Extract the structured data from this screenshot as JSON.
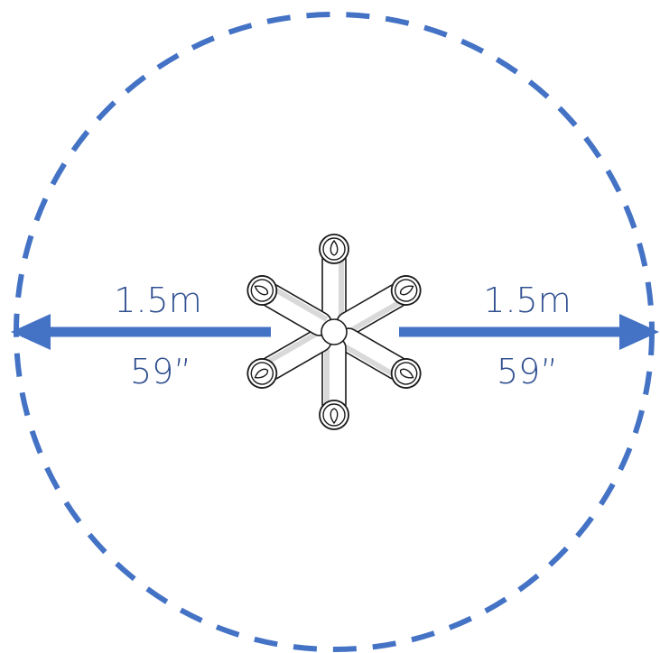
{
  "colors": {
    "accent": "#4472c4",
    "label": "#2f4f8f",
    "outline": "#1a1a1a",
    "fixture_fill": "#ffffff",
    "fixture_shade": "#d9d9d9"
  },
  "icons": {
    "fixture": "six-arm-fixture-icon",
    "left_arrow": "arrow-left-icon",
    "right_arrow": "arrow-right-icon"
  },
  "left_dimension": {
    "metric": "1.5m",
    "imperial": "59”"
  },
  "right_dimension": {
    "metric": "1.5m",
    "imperial": "59”"
  }
}
